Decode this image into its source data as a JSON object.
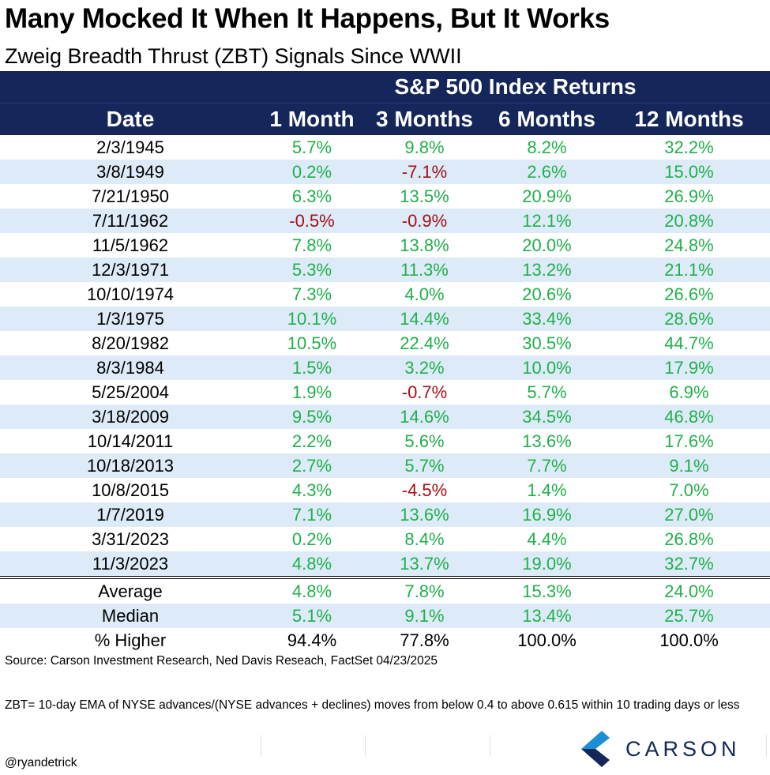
{
  "title": "Many Mocked It When It Happens, But It Works",
  "subtitle": "Zweig Breadth Thrust (ZBT) Signals Since WWII",
  "table": {
    "group_header": "S&P 500 Index Returns",
    "columns": [
      "Date",
      "1 Month",
      "3 Months",
      "6 Months",
      "12 Months"
    ],
    "rows": [
      [
        "2/3/1945",
        "5.7%",
        "9.8%",
        "8.2%",
        "32.2%"
      ],
      [
        "3/8/1949",
        "0.2%",
        "-7.1%",
        "2.6%",
        "15.0%"
      ],
      [
        "7/21/1950",
        "6.3%",
        "13.5%",
        "20.9%",
        "26.9%"
      ],
      [
        "7/11/1962",
        "-0.5%",
        "-0.9%",
        "12.1%",
        "20.8%"
      ],
      [
        "11/5/1962",
        "7.8%",
        "13.8%",
        "20.0%",
        "24.8%"
      ],
      [
        "12/3/1971",
        "5.3%",
        "11.3%",
        "13.2%",
        "21.1%"
      ],
      [
        "10/10/1974",
        "7.3%",
        "4.0%",
        "20.6%",
        "26.6%"
      ],
      [
        "1/3/1975",
        "10.1%",
        "14.4%",
        "33.4%",
        "28.6%"
      ],
      [
        "8/20/1982",
        "10.5%",
        "22.4%",
        "30.5%",
        "44.7%"
      ],
      [
        "8/3/1984",
        "1.5%",
        "3.2%",
        "10.0%",
        "17.9%"
      ],
      [
        "5/25/2004",
        "1.9%",
        "-0.7%",
        "5.7%",
        "6.9%"
      ],
      [
        "3/18/2009",
        "9.5%",
        "14.6%",
        "34.5%",
        "46.8%"
      ],
      [
        "10/14/2011",
        "2.2%",
        "5.6%",
        "13.6%",
        "17.6%"
      ],
      [
        "10/18/2013",
        "2.7%",
        "5.7%",
        "7.7%",
        "9.1%"
      ],
      [
        "10/8/2015",
        "4.3%",
        "-4.5%",
        "1.4%",
        "7.0%"
      ],
      [
        "1/7/2019",
        "7.1%",
        "13.6%",
        "16.9%",
        "27.0%"
      ],
      [
        "3/31/2023",
        "0.2%",
        "8.4%",
        "4.4%",
        "26.8%"
      ],
      [
        "11/3/2023",
        "4.8%",
        "13.7%",
        "19.0%",
        "32.7%"
      ]
    ],
    "summary": [
      [
        "Average",
        "4.8%",
        "7.8%",
        "15.3%",
        "24.0%"
      ],
      [
        "Median",
        "5.1%",
        "9.1%",
        "13.4%",
        "25.7%"
      ],
      [
        "% Higher",
        "94.4%",
        "77.8%",
        "100.0%",
        "100.0%"
      ]
    ]
  },
  "source": "Source: Carson Investment Research, Ned Davis Reseach, FactSet 04/23/2025",
  "note": "ZBT= 10-day EMA of NYSE advances/(NYSE advances + declines) moves from below 0.4 to above 0.615 within 10 trading days or less",
  "handle": "@ryandetrick",
  "logo": {
    "text": "CARSON",
    "icon": "carson-logo-icon"
  },
  "colors": {
    "header_bg": "#14265a",
    "alt_row_bg": "#dcebf7",
    "positive": "#20b04b",
    "negative": "#a50f15"
  }
}
